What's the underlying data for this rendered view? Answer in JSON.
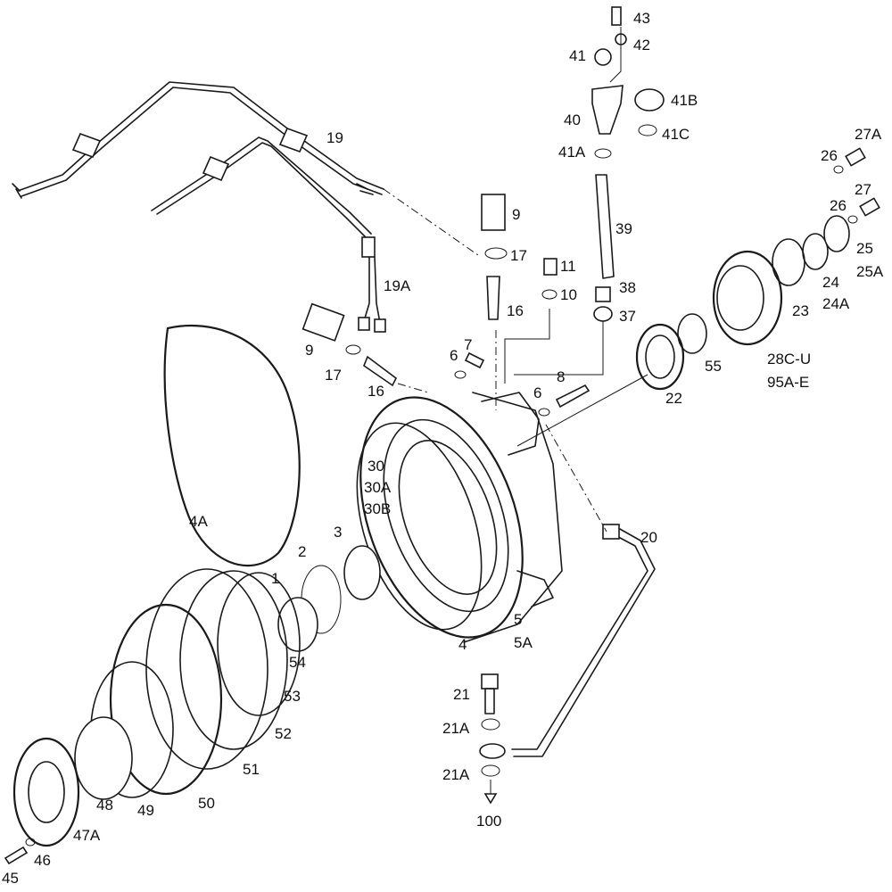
{
  "labels": [
    "43",
    "42",
    "41",
    "41B",
    "40",
    "41C",
    "41A",
    "19",
    "27A",
    "26",
    "27",
    "26",
    "25",
    "25A",
    "9",
    "17",
    "39",
    "11",
    "10",
    "38",
    "37",
    "16",
    "24",
    "24A",
    "23",
    "19A",
    "9",
    "17",
    "16",
    "7",
    "6",
    "8",
    "6",
    "55",
    "22",
    "28C-U",
    "95A-E",
    "30",
    "30A",
    "30B",
    "4A",
    "20",
    "3",
    "2",
    "1",
    "5",
    "5A",
    "4",
    "54",
    "53",
    "52",
    "51",
    "21",
    "21A",
    "21A",
    "100",
    "50",
    "49",
    "48",
    "47A",
    "46",
    "45"
  ],
  "colors": {
    "ink": "#1a1a1a",
    "paper": "#ffffff"
  }
}
